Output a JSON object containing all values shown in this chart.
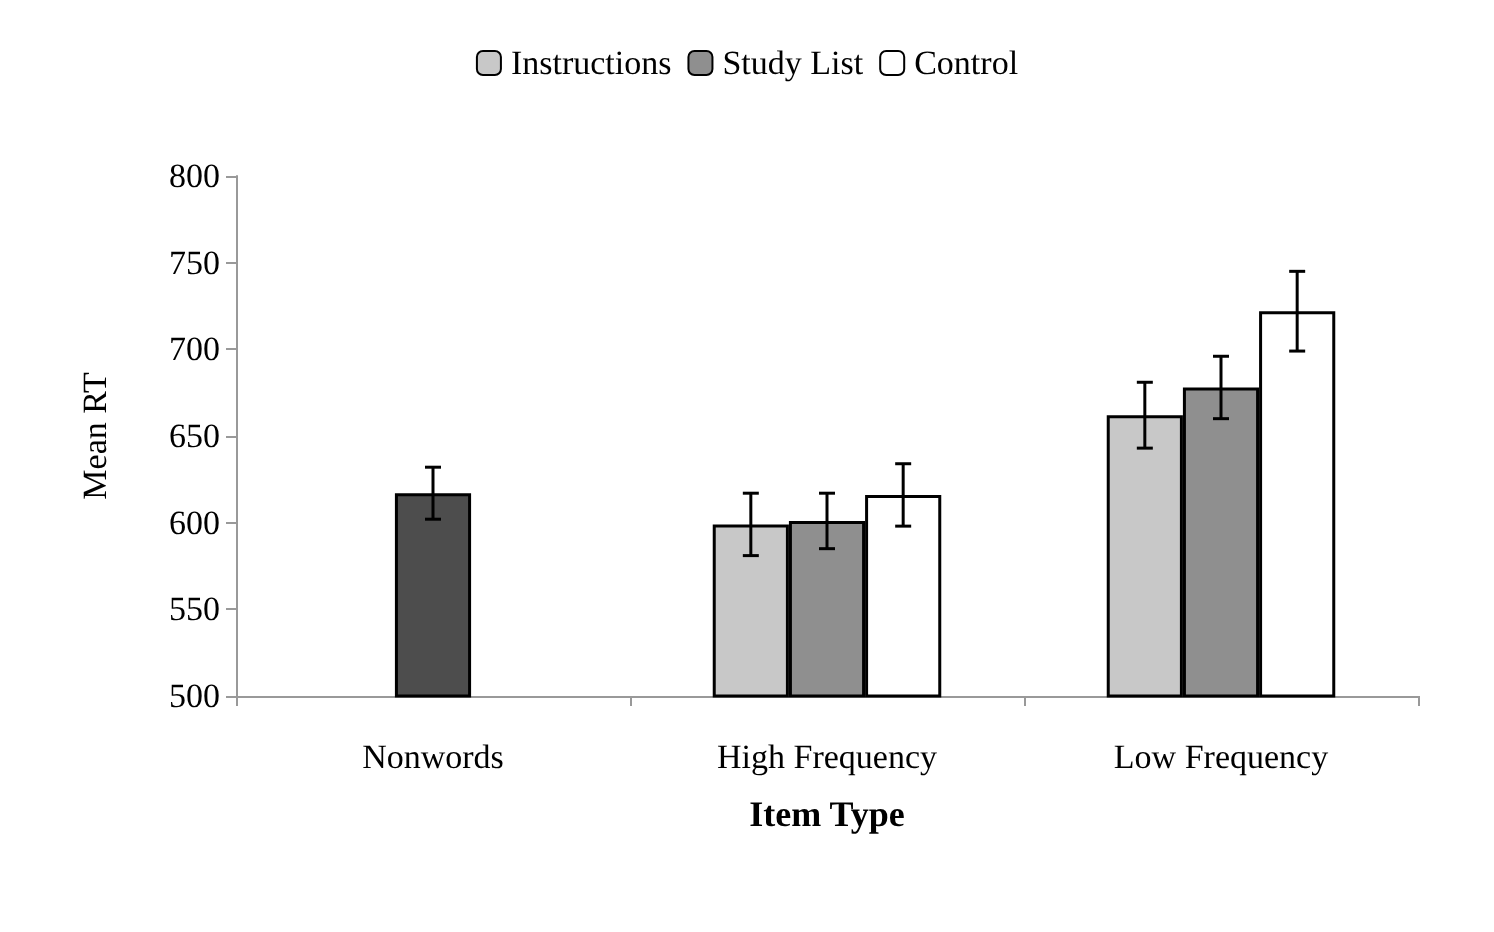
{
  "chart_data": {
    "type": "bar",
    "xlabel": "Item Type",
    "ylabel": "Mean RT",
    "categories": [
      "Nonwords",
      "High Frequency",
      "Low Frequency"
    ],
    "series": [
      {
        "name": "Instructions",
        "color": "#c8c8c8",
        "values": [
          null,
          599,
          662
        ],
        "errors": [
          null,
          18,
          19
        ]
      },
      {
        "name": "Study List",
        "color": "#8f8f8f",
        "colors": [
          "#4d4d4d",
          "#8f8f8f",
          "#8f8f8f"
        ],
        "values": [
          617,
          601,
          678
        ],
        "errors": [
          15,
          16,
          18
        ]
      },
      {
        "name": "Control",
        "color": "#ffffff",
        "values": [
          null,
          616,
          722
        ],
        "errors": [
          null,
          18,
          23
        ]
      }
    ],
    "ylim": [
      500,
      800
    ],
    "yticks": [
      500,
      550,
      600,
      650,
      700,
      750,
      800
    ],
    "grid": false,
    "legend": "top"
  }
}
